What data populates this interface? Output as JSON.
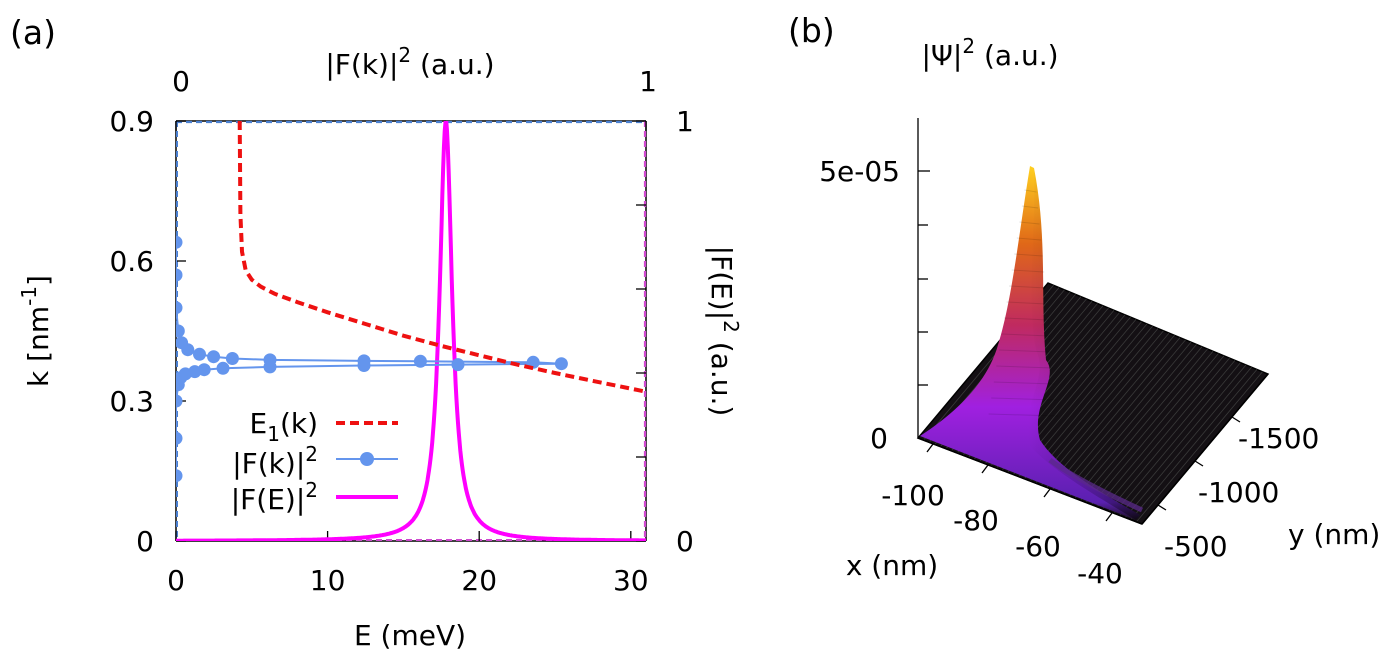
{
  "colors": {
    "e1": "#ee1111",
    "fk": "#6495ed",
    "fe": "#ff00ff",
    "frame_top": "#4a7fd0",
    "frame_right": "#d04ad0"
  },
  "chart_data": [
    {
      "panel": "(a)",
      "type": "line",
      "axes": {
        "xlabel": "E (meV)",
        "xlim": [
          0,
          31
        ],
        "xticks": [
          "0",
          "10",
          "20",
          "30"
        ],
        "ylabel": "k [nm",
        "ylabel_sup": "-1",
        "ylabel_tail": "]",
        "ylim": [
          0,
          0.9
        ],
        "yticks": [
          "0",
          "0.3",
          "0.6",
          "0.9"
        ],
        "x2label": "|F(k)|",
        "x2label_sup": "2",
        "x2label_tail": " (a.u.)",
        "x2lim": [
          0,
          1
        ],
        "x2ticks": [
          "0",
          "1"
        ],
        "y2label": "|F(E)|",
        "y2label_sup": "2",
        "y2label_tail": " (a.u.)",
        "y2lim": [
          0,
          1
        ],
        "y2ticks": [
          "0",
          "1"
        ]
      },
      "legend": {
        "position": "bottom-left",
        "entries": [
          {
            "main": "E",
            "sub": "1",
            "tail": "(k)",
            "sup": "",
            "series": "e1"
          },
          {
            "main": "|F(k)|",
            "sub": "",
            "tail": "",
            "sup": "2",
            "series": "fk"
          },
          {
            "main": "|F(E)|",
            "sub": "",
            "tail": "",
            "sup": "2",
            "series": "fe"
          }
        ]
      },
      "series": [
        {
          "id": "e1",
          "name": "E1(k)",
          "axes": "E-k",
          "style": "dashed",
          "x": [
            4.2,
            4.25,
            4.35,
            4.6,
            5.0,
            5.6,
            6.5,
            8.0,
            10.0,
            12.5,
            15.0,
            17.5,
            20.0,
            22.5,
            25.0,
            27.5,
            31.0
          ],
          "y": [
            0.9,
            0.7,
            0.62,
            0.58,
            0.56,
            0.545,
            0.53,
            0.512,
            0.49,
            0.465,
            0.44,
            0.418,
            0.398,
            0.378,
            0.36,
            0.343,
            0.32
          ]
        },
        {
          "id": "fk",
          "name": "|F(k)|^2",
          "axes": "F-k",
          "style": "line-points",
          "x": [
            0.0,
            0.0,
            0.0,
            0.005,
            0.01,
            0.02,
            0.04,
            0.06,
            0.1,
            0.2,
            0.4,
            0.6,
            0.82,
            0.76,
            0.52,
            0.4,
            0.2,
            0.12,
            0.08,
            0.05,
            0.025,
            0.012,
            0.005,
            0.0,
            0.0,
            0.0
          ],
          "y": [
            0.14,
            0.22,
            0.3,
            0.335,
            0.35,
            0.358,
            0.363,
            0.367,
            0.37,
            0.373,
            0.376,
            0.378,
            0.38,
            0.383,
            0.385,
            0.386,
            0.388,
            0.391,
            0.395,
            0.4,
            0.41,
            0.425,
            0.45,
            0.5,
            0.57,
            0.64
          ]
        },
        {
          "id": "fe",
          "name": "|F(E)|^2",
          "axes": "E-F",
          "style": "solid",
          "lorentzian": {
            "center": 17.8,
            "hwhm": 0.5,
            "amplitude": 1.0
          }
        }
      ]
    },
    {
      "panel": "(b)",
      "type": "surface",
      "title": "|Ψ|",
      "title_sup": "2",
      "title_tail": " (a.u.)",
      "xlabel": "x (nm)",
      "xticks": [
        "-100",
        "-80",
        "-60",
        "-40"
      ],
      "ylabel": "y (nm)",
      "yticks": [
        "-500",
        "-1000",
        "-1500"
      ],
      "zticks": [
        "0",
        "5e-05"
      ],
      "zlim": [
        0,
        5.3e-05
      ],
      "peak": {
        "x": -100,
        "y": -500,
        "value": 5.2e-05
      }
    }
  ]
}
